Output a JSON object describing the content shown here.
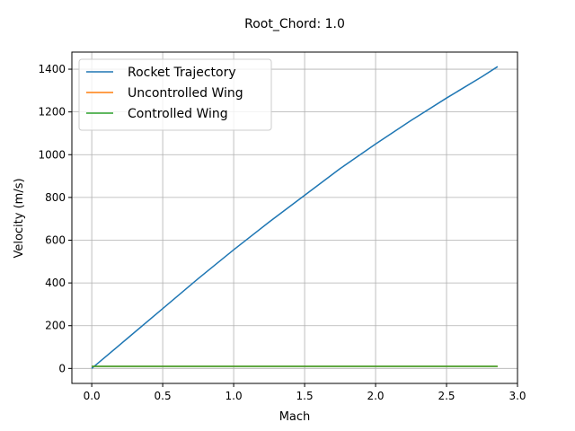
{
  "chart_data": {
    "type": "line",
    "title": "Root_Chord: 1.0",
    "xlabel": "Mach",
    "ylabel": "Velocity (m/s)",
    "xlim": [
      -0.14,
      3.0
    ],
    "ylim": [
      -70,
      1480
    ],
    "xticks": [
      0.0,
      0.5,
      1.0,
      1.5,
      2.0,
      2.5,
      3.0
    ],
    "xtick_labels": [
      "0.0",
      "0.5",
      "1.0",
      "1.5",
      "2.0",
      "2.5",
      "3.0"
    ],
    "yticks": [
      0,
      200,
      400,
      600,
      800,
      1000,
      1200,
      1400
    ],
    "ytick_labels": [
      "0",
      "200",
      "400",
      "600",
      "800",
      "1000",
      "1200",
      "1400"
    ],
    "grid": true,
    "legend": "upper left",
    "series": [
      {
        "name": "Rocket Trajectory",
        "color": "#1f77b4",
        "x": [
          0.0,
          0.25,
          0.5,
          0.75,
          1.0,
          1.25,
          1.5,
          1.75,
          2.0,
          2.25,
          2.5,
          2.75,
          2.86
        ],
        "y": [
          0,
          140,
          280,
          420,
          555,
          685,
          810,
          935,
          1050,
          1160,
          1265,
          1365,
          1412
        ]
      },
      {
        "name": "Uncontrolled Wing",
        "color": "#ff7f0e",
        "x": [
          0.0,
          2.86
        ],
        "y": [
          10,
          10
        ]
      },
      {
        "name": "Controlled Wing",
        "color": "#2ca02c",
        "x": [
          0.0,
          2.86
        ],
        "y": [
          10,
          10
        ]
      }
    ]
  }
}
